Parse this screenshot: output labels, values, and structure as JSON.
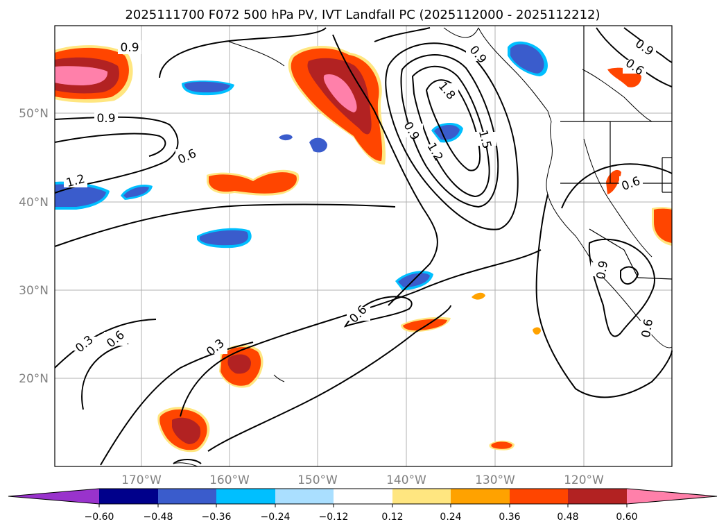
{
  "title": "2025111700 F072 500 hPa PV, IVT Landfall PC (2025112000 - 2025112212)",
  "map": {
    "lat_ticks": [
      "50°N",
      "40°N",
      "30°N",
      "20°N"
    ],
    "lon_ticks": [
      "170°W",
      "160°W",
      "150°W",
      "140°W",
      "130°W",
      "120°W"
    ],
    "grid": true,
    "contour_labels": [
      "0.9",
      "0.9",
      "0.6",
      "1.2",
      "0.3",
      "0.6",
      "0.3",
      "0.6",
      "0.9",
      "1.2",
      "1.8",
      "1.5",
      "0.9",
      "0.6",
      "0.6",
      "0.9",
      "0.6",
      "0.9"
    ]
  },
  "colorbar": {
    "ticks": [
      "−0.60",
      "−0.48",
      "−0.36",
      "−0.24",
      "−0.12",
      "0.12",
      "0.24",
      "0.36",
      "0.48",
      "0.60"
    ],
    "colors": [
      "#9933cc",
      "#00008b",
      "#3a5ccc",
      "#00bfff",
      "#aadfff",
      "#ffffff",
      "#ffe680",
      "#ffa200",
      "#ff4500",
      "#b22222",
      "#ff80aa"
    ]
  }
}
